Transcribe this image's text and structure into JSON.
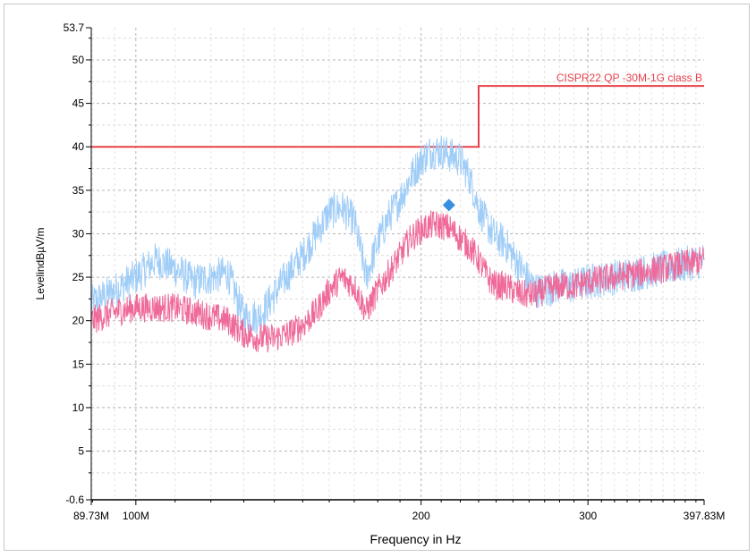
{
  "chart_data": {
    "type": "line",
    "title": "",
    "xlabel": "Frequency in Hz",
    "ylabel": "LevelindBµV/m",
    "x_scale": "log",
    "xlim": [
      89.73,
      397.83
    ],
    "ylim": [
      -0.6,
      53.7
    ],
    "grid": true,
    "x_tick_labels": [
      {
        "value": 89.73,
        "label": "89.73M"
      },
      {
        "value": 100,
        "label": "100M"
      },
      {
        "value": 200,
        "label": "200"
      },
      {
        "value": 300,
        "label": "300"
      },
      {
        "value": 397.83,
        "label": "397.83M"
      }
    ],
    "y_tick_labels": [
      {
        "value": -0.6,
        "label": "-0.6"
      },
      {
        "value": 5,
        "label": "5"
      },
      {
        "value": 10,
        "label": "10"
      },
      {
        "value": 15,
        "label": "15"
      },
      {
        "value": 20,
        "label": "20"
      },
      {
        "value": 25,
        "label": "25"
      },
      {
        "value": 30,
        "label": "30"
      },
      {
        "value": 35,
        "label": "35"
      },
      {
        "value": 40,
        "label": "40"
      },
      {
        "value": 45,
        "label": "45"
      },
      {
        "value": 50,
        "label": "50"
      },
      {
        "value": 53.7,
        "label": "53.7"
      }
    ],
    "limit_line": {
      "name": "CISPR22 QP -30M-1G class B",
      "color": "#e8404a",
      "x": [
        89.73,
        230,
        230,
        397.83
      ],
      "y": [
        40,
        40,
        47,
        47
      ]
    },
    "series": [
      {
        "color": "#a0cdf7",
        "x": [
          89.73,
          95,
          100,
          105,
          110,
          115,
          120,
          125,
          130,
          135,
          140,
          145,
          150,
          155,
          160,
          165,
          170,
          175,
          180,
          185,
          190,
          195,
          200,
          205,
          210,
          215,
          220,
          225,
          230,
          235,
          240,
          245,
          250,
          255,
          260,
          265,
          270,
          280,
          290,
          300,
          320,
          340,
          360,
          380,
          397.83
        ],
        "y": [
          22,
          23.5,
          25,
          27,
          26,
          24.5,
          25,
          25.5,
          20.5,
          20.5,
          23,
          25.5,
          27.5,
          30,
          32.5,
          33,
          31.5,
          25,
          29,
          32,
          34,
          36.5,
          38.5,
          39.5,
          39.5,
          39,
          38.5,
          36.5,
          33,
          31,
          29.5,
          29,
          27.5,
          26,
          24.5,
          23.5,
          23.5,
          24,
          24,
          24.5,
          25,
          25.5,
          26,
          26.5,
          27
        ]
      },
      {
        "color": "#ef6a9a",
        "x": [
          89.73,
          95,
          100,
          105,
          110,
          115,
          120,
          125,
          130,
          135,
          140,
          145,
          150,
          155,
          160,
          165,
          170,
          175,
          180,
          185,
          190,
          195,
          200,
          205,
          210,
          215,
          220,
          225,
          230,
          235,
          240,
          245,
          250,
          255,
          260,
          265,
          270,
          280,
          290,
          300,
          320,
          340,
          360,
          380,
          397.83
        ],
        "y": [
          20,
          21,
          21.5,
          21.5,
          21.5,
          21,
          20.5,
          20,
          18.5,
          18,
          18,
          18.5,
          19.5,
          21,
          23.5,
          25,
          24,
          21,
          23.5,
          25.5,
          27.5,
          29.5,
          30.5,
          31,
          31,
          30.5,
          29.5,
          28.5,
          27,
          25,
          24,
          24,
          23.5,
          23,
          23,
          23,
          23.5,
          24,
          24,
          24.5,
          25,
          25.5,
          26,
          26.5,
          27
        ]
      }
    ],
    "markers": [
      {
        "shape": "diamond",
        "color": "#3a8ee0",
        "x": 214,
        "y": 33.3
      }
    ]
  }
}
